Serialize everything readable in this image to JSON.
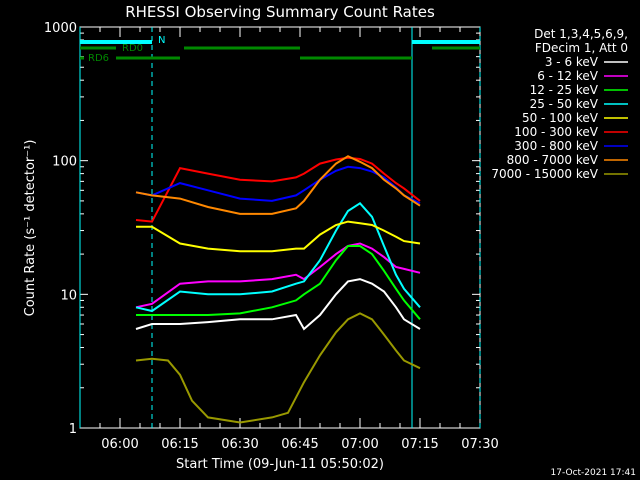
{
  "chart_data": {
    "type": "line",
    "title": "RHESSI Observing Summary Count Rates",
    "xlabel": "Start Time (09-Jun-11 05:50:02)",
    "ylabel": "Count Rate (s⁻¹ detector⁻¹)",
    "ylog": true,
    "ylim": [
      1,
      1000
    ],
    "xlim_minutes": [
      0,
      100
    ],
    "x_ticks": [
      {
        "label": "06:00",
        "minutes": 10
      },
      {
        "label": "06:15",
        "minutes": 25
      },
      {
        "label": "06:30",
        "minutes": 40
      },
      {
        "label": "06:45",
        "minutes": 55
      },
      {
        "label": "07:00",
        "minutes": 70
      },
      {
        "label": "07:15",
        "minutes": 85
      },
      {
        "label": "07:30",
        "minutes": 100
      }
    ],
    "y_ticks": [
      {
        "label": "1",
        "value": 1
      },
      {
        "label": "10",
        "value": 10
      },
      {
        "label": "100",
        "value": 100
      },
      {
        "label": "1000",
        "value": 1000
      }
    ],
    "legend": {
      "header": [
        "Det 1,3,4,5,6,9,",
        "FDecim 1, Att 0"
      ],
      "position": "right"
    },
    "flags": [
      {
        "label": "N",
        "color": "#00ffff",
        "segments": [
          [
            0,
            18
          ],
          [
            83,
            100
          ]
        ]
      },
      {
        "label": "RD0",
        "color": "#008800",
        "segments": [
          [
            0,
            9
          ],
          [
            26,
            55
          ],
          [
            88,
            100
          ]
        ]
      },
      {
        "label": "RD6",
        "color": "#008800",
        "segments": [
          [
            0,
            1
          ],
          [
            9,
            25
          ],
          [
            55,
            83
          ]
        ]
      }
    ],
    "saa_lines": [
      {
        "style": "solid",
        "minutes": 0
      },
      {
        "style": "dashed",
        "minutes": 18
      },
      {
        "style": "solid",
        "minutes": 83
      },
      {
        "style": "dashed",
        "minutes": 100
      }
    ],
    "series": [
      {
        "name": "3 - 6 keV",
        "color": "#ffffff",
        "points": [
          [
            14,
            5.5
          ],
          [
            18,
            6
          ],
          [
            25,
            6
          ],
          [
            32,
            6.2
          ],
          [
            40,
            6.5
          ],
          [
            48,
            6.5
          ],
          [
            54,
            7
          ],
          [
            56,
            5.5
          ],
          [
            60,
            7
          ],
          [
            64,
            10
          ],
          [
            67,
            12.5
          ],
          [
            70,
            13
          ],
          [
            73,
            12
          ],
          [
            76,
            10.5
          ],
          [
            79,
            8
          ],
          [
            81,
            6.5
          ],
          [
            85,
            5.5
          ]
        ]
      },
      {
        "name": "6 - 12 keV",
        "color": "#ff00ff",
        "points": [
          [
            14,
            8
          ],
          [
            18,
            8.5
          ],
          [
            25,
            12
          ],
          [
            32,
            12.5
          ],
          [
            40,
            12.5
          ],
          [
            48,
            13
          ],
          [
            54,
            14
          ],
          [
            56,
            13
          ],
          [
            60,
            16
          ],
          [
            64,
            20
          ],
          [
            67,
            23
          ],
          [
            70,
            24
          ],
          [
            73,
            22
          ],
          [
            76,
            19
          ],
          [
            79,
            16
          ],
          [
            81,
            15.5
          ],
          [
            85,
            14.5
          ]
        ]
      },
      {
        "name": "12 - 25 keV",
        "color": "#00ff00",
        "points": [
          [
            14,
            7
          ],
          [
            18,
            7
          ],
          [
            25,
            7
          ],
          [
            32,
            7
          ],
          [
            40,
            7.2
          ],
          [
            48,
            8
          ],
          [
            54,
            9
          ],
          [
            56,
            10
          ],
          [
            60,
            12
          ],
          [
            64,
            18
          ],
          [
            67,
            23
          ],
          [
            70,
            23
          ],
          [
            73,
            20
          ],
          [
            76,
            15
          ],
          [
            79,
            11
          ],
          [
            81,
            9
          ],
          [
            85,
            6.5
          ]
        ]
      },
      {
        "name": "25 - 50 keV",
        "color": "#00ffff",
        "points": [
          [
            14,
            8
          ],
          [
            18,
            7.5
          ],
          [
            25,
            10.5
          ],
          [
            32,
            10
          ],
          [
            40,
            10
          ],
          [
            48,
            10.5
          ],
          [
            54,
            12
          ],
          [
            56,
            12.5
          ],
          [
            60,
            18
          ],
          [
            64,
            30
          ],
          [
            67,
            42
          ],
          [
            70,
            48
          ],
          [
            73,
            38
          ],
          [
            76,
            23
          ],
          [
            79,
            14
          ],
          [
            81,
            11
          ],
          [
            85,
            8
          ]
        ]
      },
      {
        "name": "50 - 100 keV",
        "color": "#ffff00",
        "points": [
          [
            14,
            32
          ],
          [
            18,
            32
          ],
          [
            25,
            24
          ],
          [
            32,
            22
          ],
          [
            40,
            21
          ],
          [
            48,
            21
          ],
          [
            54,
            22
          ],
          [
            56,
            22
          ],
          [
            60,
            28
          ],
          [
            64,
            33
          ],
          [
            67,
            35
          ],
          [
            70,
            34
          ],
          [
            73,
            33
          ],
          [
            76,
            30
          ],
          [
            79,
            27
          ],
          [
            81,
            25
          ],
          [
            85,
            24
          ]
        ]
      },
      {
        "name": "100 - 300 keV",
        "color": "#ff0000",
        "points": [
          [
            14,
            36
          ],
          [
            18,
            35
          ],
          [
            25,
            88
          ],
          [
            32,
            80
          ],
          [
            40,
            72
          ],
          [
            48,
            70
          ],
          [
            54,
            75
          ],
          [
            56,
            80
          ],
          [
            60,
            95
          ],
          [
            64,
            102
          ],
          [
            67,
            105
          ],
          [
            70,
            103
          ],
          [
            73,
            95
          ],
          [
            76,
            80
          ],
          [
            79,
            68
          ],
          [
            81,
            62
          ],
          [
            85,
            50
          ]
        ]
      },
      {
        "name": "300 - 800 keV",
        "color": "#0000ff",
        "points": [
          [
            14,
            58
          ],
          [
            18,
            55
          ],
          [
            25,
            68
          ],
          [
            32,
            60
          ],
          [
            40,
            52
          ],
          [
            48,
            50
          ],
          [
            54,
            55
          ],
          [
            56,
            60
          ],
          [
            60,
            72
          ],
          [
            64,
            84
          ],
          [
            67,
            90
          ],
          [
            70,
            88
          ],
          [
            73,
            83
          ],
          [
            76,
            75
          ],
          [
            79,
            63
          ],
          [
            81,
            55
          ],
          [
            85,
            48
          ]
        ]
      },
      {
        "name": "800 - 7000 keV",
        "color": "#ff8800",
        "points": [
          [
            14,
            58
          ],
          [
            18,
            55
          ],
          [
            25,
            52
          ],
          [
            32,
            45
          ],
          [
            40,
            40
          ],
          [
            48,
            40
          ],
          [
            54,
            44
          ],
          [
            56,
            50
          ],
          [
            60,
            72
          ],
          [
            64,
            95
          ],
          [
            67,
            108
          ],
          [
            70,
            98
          ],
          [
            73,
            88
          ],
          [
            76,
            72
          ],
          [
            79,
            62
          ],
          [
            81,
            55
          ],
          [
            85,
            46
          ]
        ]
      },
      {
        "name": "7000 - 15000 keV",
        "color": "#999900",
        "points": [
          [
            14,
            3.2
          ],
          [
            18,
            3.3
          ],
          [
            22,
            3.2
          ],
          [
            25,
            2.5
          ],
          [
            28,
            1.6
          ],
          [
            32,
            1.2
          ],
          [
            40,
            1.1
          ],
          [
            48,
            1.2
          ],
          [
            52,
            1.3
          ],
          [
            56,
            2.2
          ],
          [
            60,
            3.5
          ],
          [
            64,
            5.2
          ],
          [
            67,
            6.5
          ],
          [
            70,
            7.2
          ],
          [
            73,
            6.5
          ],
          [
            76,
            5
          ],
          [
            79,
            3.8
          ],
          [
            81,
            3.2
          ],
          [
            85,
            2.8
          ]
        ]
      }
    ]
  },
  "footer": {
    "timestamp": "17-Oct-2021 17:41"
  }
}
